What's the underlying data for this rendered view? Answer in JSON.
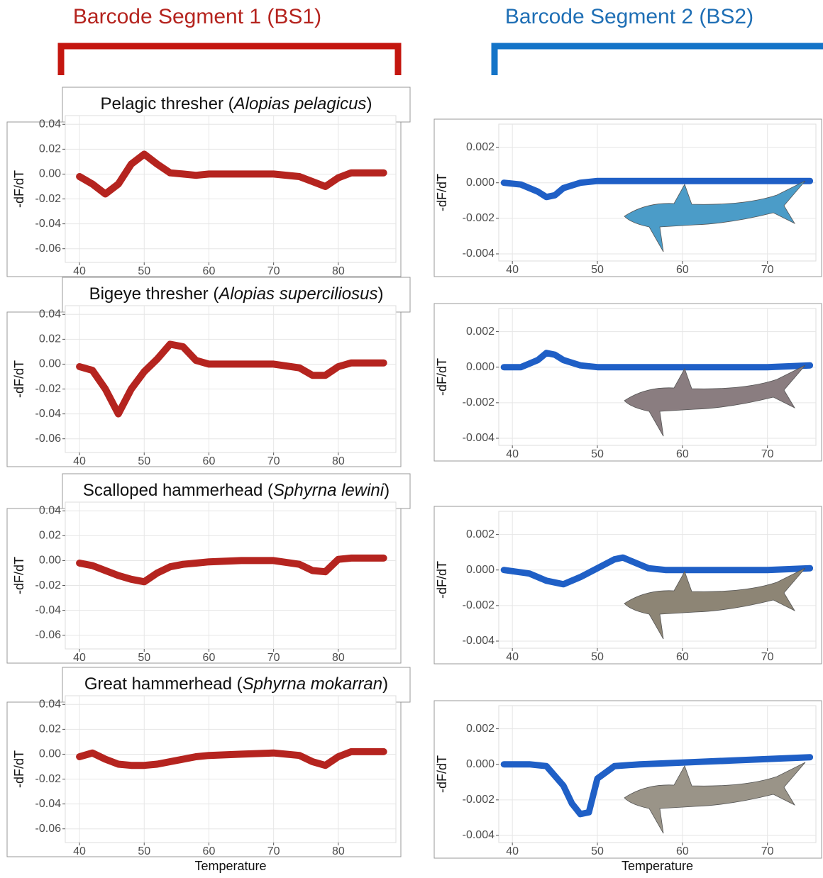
{
  "headers": [
    "Barcode Segment 1 (BS1)",
    "Barcode Segment 2 (BS2)"
  ],
  "chart_data": [
    {
      "type": "line",
      "title_parts": [
        "Pelagic thresher (",
        "Alopias pelagicus",
        ")"
      ],
      "y_label": "-dF/dT",
      "color": "#b5241f",
      "grid": true,
      "x": [
        40,
        42,
        44,
        46,
        48,
        50,
        52,
        54,
        56,
        58,
        60,
        65,
        70,
        74,
        76,
        78,
        80,
        82,
        84,
        87
      ],
      "values": [
        -0.002,
        -0.008,
        -0.016,
        -0.008,
        0.008,
        0.016,
        0.008,
        0.001,
        0,
        -0.001,
        0,
        0,
        0,
        -0.002,
        -0.006,
        -0.01,
        -0.003,
        0.001,
        0.001,
        0.001
      ],
      "xlim": [
        37.8,
        88.9
      ],
      "ylim": [
        -0.071,
        0.047
      ],
      "xticks": [
        40,
        50,
        60,
        70,
        80
      ],
      "yticks": [
        -0.06,
        -0.04,
        -0.02,
        {
          "value": 0,
          "label": "0.00"
        },
        0.02,
        0.04
      ]
    },
    {
      "type": "line",
      "y_label": "-dF/dT",
      "color": "#1f5fc6",
      "grid": true,
      "x": [
        39,
        41,
        43,
        44,
        45,
        46,
        48,
        50,
        52,
        54,
        56,
        58,
        60,
        65,
        70,
        75
      ],
      "values": [
        0,
        -0.0001,
        -0.0005,
        -0.0008,
        -0.0007,
        -0.0003,
        0,
        0.0001,
        0.0001,
        0.0001,
        0.0001,
        0.0001,
        0.0001,
        0.0001,
        0.0001,
        0.0001
      ],
      "xlim": [
        38.4,
        75.7
      ],
      "ylim": [
        -0.0044,
        0.0033
      ],
      "xticks": [
        40,
        50,
        60,
        70
      ],
      "yticks": [
        -0.004,
        -0.002,
        {
          "value": 0,
          "label": "0.000"
        },
        0.002
      ]
    },
    {
      "type": "line",
      "title_parts": [
        "Bigeye thresher (",
        "Alopias superciliosus",
        ")"
      ],
      "y_label": "-dF/dT",
      "color": "#b5241f",
      "grid": true,
      "x": [
        40,
        42,
        44,
        46,
        48,
        50,
        52,
        54,
        56,
        58,
        60,
        65,
        70,
        74,
        76,
        78,
        80,
        82,
        84,
        87
      ],
      "values": [
        -0.002,
        -0.005,
        -0.02,
        -0.04,
        -0.02,
        -0.006,
        0.004,
        0.016,
        0.014,
        0.003,
        0,
        0,
        0,
        -0.003,
        -0.009,
        -0.009,
        -0.002,
        0.001,
        0.001,
        0.001
      ],
      "xlim": [
        37.8,
        88.9
      ],
      "ylim": [
        -0.071,
        0.047
      ],
      "xticks": [
        40,
        50,
        60,
        70,
        80
      ],
      "yticks": [
        -0.06,
        -0.04,
        -0.02,
        {
          "value": 0,
          "label": "0.00"
        },
        0.02,
        0.04
      ]
    },
    {
      "type": "line",
      "y_label": "-dF/dT",
      "color": "#1f5fc6",
      "grid": true,
      "x": [
        39,
        41,
        43,
        44,
        45,
        46,
        48,
        50,
        52,
        54,
        56,
        58,
        60,
        65,
        70,
        75
      ],
      "values": [
        0,
        0,
        0.0004,
        0.0008,
        0.0007,
        0.0004,
        0.0001,
        0,
        0,
        0,
        0,
        0,
        0,
        0,
        0,
        0.0001
      ],
      "xlim": [
        38.4,
        75.7
      ],
      "ylim": [
        -0.0044,
        0.0033
      ],
      "xticks": [
        40,
        50,
        60,
        70
      ],
      "yticks": [
        -0.004,
        -0.002,
        {
          "value": 0,
          "label": "0.000"
        },
        0.002
      ]
    },
    {
      "type": "line",
      "title_parts": [
        "Scalloped hammerhead (",
        "Sphyrna lewini",
        ")"
      ],
      "y_label": "-dF/dT",
      "color": "#b5241f",
      "grid": true,
      "x": [
        40,
        42,
        44,
        46,
        48,
        50,
        52,
        54,
        56,
        58,
        60,
        65,
        70,
        74,
        76,
        78,
        80,
        82,
        84,
        87
      ],
      "values": [
        -0.002,
        -0.004,
        -0.008,
        -0.012,
        -0.015,
        -0.017,
        -0.01,
        -0.005,
        -0.003,
        -0.002,
        -0.001,
        0,
        0,
        -0.003,
        -0.008,
        -0.009,
        0.001,
        0.002,
        0.002,
        0.002
      ],
      "xlim": [
        37.8,
        88.9
      ],
      "ylim": [
        -0.071,
        0.047
      ],
      "xticks": [
        40,
        50,
        60,
        70,
        80
      ],
      "yticks": [
        -0.06,
        -0.04,
        -0.02,
        {
          "value": 0,
          "label": "0.00"
        },
        0.02,
        0.04
      ]
    },
    {
      "type": "line",
      "y_label": "-dF/dT",
      "color": "#1f5fc6",
      "grid": true,
      "x": [
        39,
        42,
        44,
        46,
        48,
        50,
        52,
        53,
        54,
        56,
        58,
        60,
        65,
        70,
        75
      ],
      "values": [
        0,
        -0.0002,
        -0.0006,
        -0.0008,
        -0.0004,
        0.0001,
        0.0006,
        0.0007,
        0.0005,
        0.0001,
        0,
        0,
        0,
        0,
        0.0001
      ],
      "xlim": [
        38.4,
        75.7
      ],
      "ylim": [
        -0.0044,
        0.0033
      ],
      "xticks": [
        40,
        50,
        60,
        70
      ],
      "yticks": [
        -0.004,
        -0.002,
        {
          "value": 0,
          "label": "0.000"
        },
        0.002
      ]
    },
    {
      "type": "line",
      "title_parts": [
        "Great hammerhead (",
        "Sphyrna mokarran",
        ")"
      ],
      "y_label": "-dF/dT",
      "x_label": "Temperature",
      "color": "#b5241f",
      "grid": true,
      "x": [
        40,
        42,
        44,
        46,
        48,
        50,
        52,
        54,
        56,
        58,
        60,
        65,
        70,
        74,
        76,
        78,
        80,
        82,
        84,
        87
      ],
      "values": [
        -0.002,
        0.001,
        -0.004,
        -0.008,
        -0.009,
        -0.009,
        -0.008,
        -0.006,
        -0.004,
        -0.002,
        -0.001,
        0,
        0.001,
        -0.001,
        -0.006,
        -0.009,
        -0.002,
        0.002,
        0.002,
        0.002
      ],
      "xlim": [
        37.8,
        88.9
      ],
      "ylim": [
        -0.071,
        0.047
      ],
      "xticks": [
        40,
        50,
        60,
        70,
        80
      ],
      "yticks": [
        -0.06,
        -0.04,
        -0.02,
        {
          "value": 0,
          "label": "0.00"
        },
        0.02,
        0.04
      ]
    },
    {
      "type": "line",
      "y_label": "-dF/dT",
      "x_label": "Temperature",
      "color": "#1f5fc6",
      "grid": true,
      "x": [
        39,
        42,
        44,
        46,
        47,
        48,
        49,
        50,
        52,
        55,
        60,
        65,
        70,
        75
      ],
      "values": [
        0,
        0,
        -0.0001,
        -0.0012,
        -0.0022,
        -0.0028,
        -0.0027,
        -0.0008,
        -0.0001,
        0,
        0.0001,
        0.0002,
        0.0003,
        0.0004
      ],
      "xlim": [
        38.4,
        75.7
      ],
      "ylim": [
        -0.0044,
        0.0033
      ],
      "xticks": [
        40,
        50,
        60,
        70
      ],
      "yticks": [
        -0.004,
        -0.002,
        {
          "value": 0,
          "label": "0.000"
        },
        0.002
      ]
    }
  ]
}
